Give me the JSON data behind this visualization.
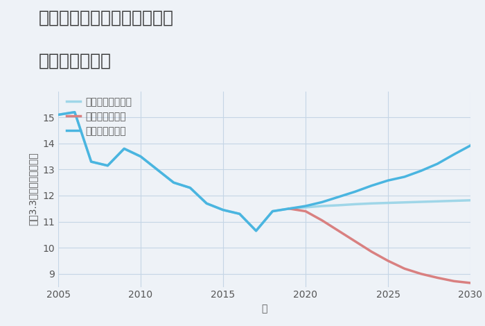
{
  "title_line1": "三重県桑名市長島町下坂手の",
  "title_line2": "土地の価格推移",
  "xlabel": "年",
  "ylabel": "坪（3.3㎡）単価（万円）",
  "background_color": "#eef2f7",
  "plot_background": "#eef2f7",
  "good_scenario": {
    "label": "グッドシナリオ",
    "color": "#4ab5e0",
    "years": [
      2005,
      2006,
      2007,
      2008,
      2009,
      2010,
      2011,
      2012,
      2013,
      2014,
      2015,
      2016,
      2017,
      2018,
      2019,
      2020,
      2021,
      2022,
      2023,
      2024,
      2025,
      2026,
      2027,
      2028,
      2029,
      2030
    ],
    "values": [
      15.1,
      15.2,
      13.3,
      13.15,
      13.8,
      13.5,
      13.0,
      12.5,
      12.3,
      11.7,
      11.45,
      11.3,
      10.65,
      11.4,
      11.5,
      11.6,
      11.75,
      11.95,
      12.15,
      12.38,
      12.58,
      12.72,
      12.95,
      13.22,
      13.58,
      13.92
    ]
  },
  "bad_scenario": {
    "label": "バッドシナリオ",
    "color": "#d98080",
    "years": [
      2019,
      2020,
      2021,
      2022,
      2023,
      2024,
      2025,
      2026,
      2027,
      2028,
      2029,
      2030
    ],
    "values": [
      11.5,
      11.4,
      11.05,
      10.65,
      10.25,
      9.85,
      9.5,
      9.2,
      9.0,
      8.85,
      8.72,
      8.65
    ]
  },
  "normal_scenario": {
    "label": "ノーマルシナリオ",
    "color": "#9fd6e8",
    "years": [
      2005,
      2006,
      2007,
      2008,
      2009,
      2010,
      2011,
      2012,
      2013,
      2014,
      2015,
      2016,
      2017,
      2018,
      2019,
      2020,
      2021,
      2022,
      2023,
      2024,
      2025,
      2026,
      2027,
      2028,
      2029,
      2030
    ],
    "values": [
      15.1,
      15.2,
      13.3,
      13.15,
      13.8,
      13.5,
      13.0,
      12.5,
      12.3,
      11.7,
      11.45,
      11.3,
      10.65,
      11.4,
      11.5,
      11.55,
      11.6,
      11.63,
      11.67,
      11.7,
      11.72,
      11.74,
      11.76,
      11.78,
      11.8,
      11.82
    ]
  },
  "ylim": [
    8.5,
    16.0
  ],
  "xlim": [
    2005,
    2030
  ],
  "yticks": [
    9,
    10,
    11,
    12,
    13,
    14,
    15
  ],
  "xticks": [
    2005,
    2010,
    2015,
    2020,
    2025,
    2030
  ],
  "grid_color": "#c5d5e5",
  "title_fontsize": 18,
  "axis_label_fontsize": 10,
  "tick_fontsize": 10,
  "legend_fontsize": 10,
  "line_width": 2.5
}
